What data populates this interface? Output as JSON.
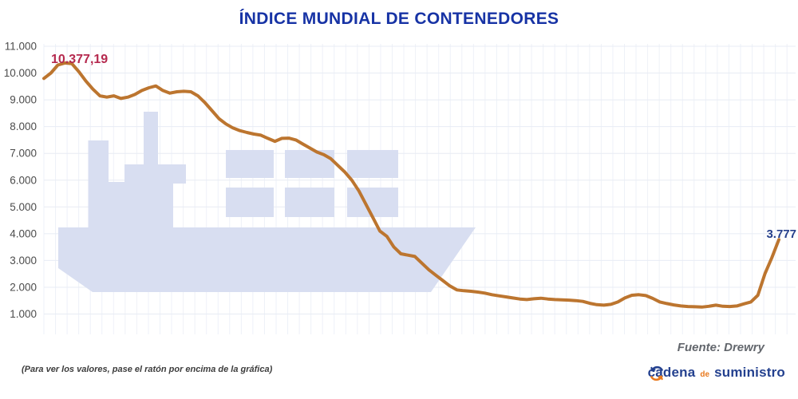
{
  "title": "ÍNDICE MUNDIAL DE CONTENEDORES",
  "annotations": {
    "start": "10.377,19",
    "end": "3.777"
  },
  "source": "Fuente: Drewry",
  "footnote": "(Para ver los valores, pase el ratón por encima de la gráfica)",
  "logo": {
    "word1": "cadena",
    "word2": "de",
    "word3": "suministro",
    "blue": "#24418f",
    "orange": "#e8791e"
  },
  "colors": {
    "line": "#bc752f",
    "ship_watermark": "#d8def1",
    "grid_vertical": "#eef1f8",
    "grid_horizontal": "#e8ecf4",
    "title": "#1733a5",
    "peak_label": "#b5294e",
    "end_label": "#26408c"
  },
  "chart_data": {
    "type": "line",
    "title": "ÍNDICE MUNDIAL DE CONTENEDORES",
    "xlabel": "",
    "ylabel": "",
    "x_axis_labels_visible": false,
    "grid": true,
    "legend_position": "none",
    "ylim": [
      1000,
      11000
    ],
    "y_ticks": [
      {
        "value": 11000,
        "label": "11.000"
      },
      {
        "value": 10000,
        "label": "10.000"
      },
      {
        "value": 9000,
        "label": "9.000"
      },
      {
        "value": 8000,
        "label": "8.000"
      },
      {
        "value": 7000,
        "label": "7.000"
      },
      {
        "value": 6000,
        "label": "6.000"
      },
      {
        "value": 5000,
        "label": "5.000"
      },
      {
        "value": 4000,
        "label": "4.000"
      },
      {
        "value": 3000,
        "label": "3.000"
      },
      {
        "value": 2000,
        "label": "2.000"
      },
      {
        "value": 1000,
        "label": "1.000"
      }
    ],
    "annotations": [
      {
        "text": "10.377,19",
        "value": 10377.19,
        "position": "start-peak"
      },
      {
        "text": "3.777",
        "value": 3777,
        "position": "end"
      }
    ],
    "source": "Drewry",
    "series": [
      {
        "name": "Índice mundial de contenedores",
        "values": [
          9800,
          10000,
          10300,
          10377,
          10350,
          10050,
          9700,
          9400,
          9150,
          9100,
          9150,
          9050,
          9100,
          9200,
          9350,
          9450,
          9520,
          9350,
          9250,
          9300,
          9320,
          9300,
          9150,
          8900,
          8600,
          8300,
          8100,
          7950,
          7850,
          7780,
          7720,
          7680,
          7560,
          7450,
          7560,
          7570,
          7500,
          7350,
          7200,
          7050,
          6950,
          6800,
          6550,
          6300,
          6000,
          5600,
          5100,
          4600,
          4100,
          3900,
          3500,
          3250,
          3200,
          3150,
          2900,
          2650,
          2450,
          2250,
          2050,
          1900,
          1870,
          1850,
          1820,
          1780,
          1720,
          1680,
          1640,
          1600,
          1560,
          1540,
          1570,
          1590,
          1560,
          1540,
          1530,
          1520,
          1500,
          1470,
          1400,
          1350,
          1330,
          1360,
          1450,
          1600,
          1700,
          1720,
          1690,
          1580,
          1450,
          1390,
          1340,
          1300,
          1280,
          1270,
          1260,
          1290,
          1330,
          1290,
          1280,
          1300,
          1380,
          1450,
          1700,
          2500,
          3100,
          3777
        ]
      }
    ]
  }
}
